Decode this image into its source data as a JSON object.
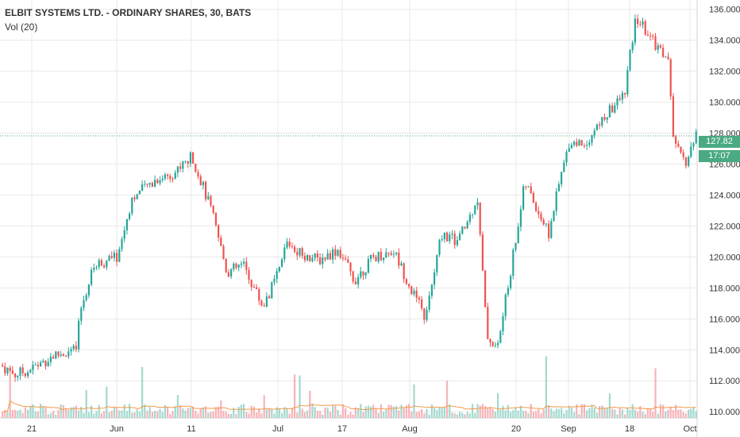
{
  "legend": {
    "title": "ELBIT SYSTEMS LTD. - ORDINARY SHARES, 30, BATS",
    "volume": "Vol (20)"
  },
  "price_tag": {
    "price": "127.82",
    "countdown": "17:07"
  },
  "colors": {
    "up": "#26a69a",
    "down": "#ef5350",
    "vol_up": "#a3d9cf",
    "vol_down": "#f7b3b8",
    "vol_ma": "#f39c47",
    "last_line": "#4aaa82",
    "grid": "#e9e9ea",
    "axis_text": "#333333"
  },
  "chart_data": {
    "type": "candlestick",
    "title": "ELBIT SYSTEMS LTD. - ORDINARY SHARES, 30, BATS",
    "ylim": [
      109.6,
      136.6
    ],
    "y_ticks": [
      110,
      112,
      114,
      116,
      118,
      120,
      122,
      124,
      126,
      128,
      130,
      132,
      134,
      136
    ],
    "x_ticks": [
      "21",
      "Jun",
      "11",
      "Jul",
      "17",
      "Aug",
      "20",
      "Sep",
      "18",
      "Oct"
    ],
    "last_price": 127.82,
    "grid": true,
    "approx_close_path": [
      {
        "date": "21",
        "close": 112.7
      },
      {
        "date": "Jun",
        "close": 120.0
      },
      {
        "date": "11",
        "close": 126.3
      },
      {
        "date": "Jul",
        "close": 121.0
      },
      {
        "date": "17",
        "close": 118.3
      },
      {
        "date": "Aug",
        "close": 116.0
      },
      {
        "date": "20",
        "close": 121.5
      },
      {
        "date": "Sep",
        "close": 126.8
      },
      {
        "date": "18",
        "close": 130.0
      },
      {
        "date": "Oct",
        "close": 127.8
      }
    ],
    "volume_series": {
      "name": "Vol (20)",
      "unit": "shares"
    }
  }
}
